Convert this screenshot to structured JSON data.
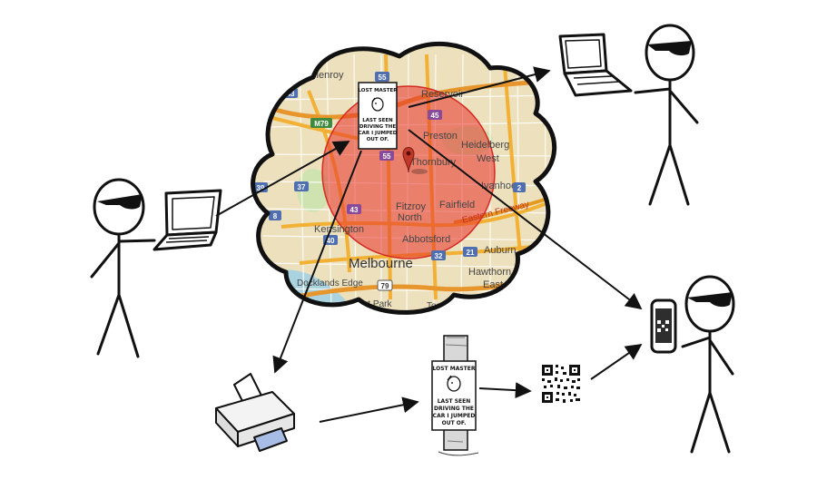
{
  "map": {
    "places": [
      "Glenroy",
      "Reservoir",
      "Preston",
      "Heidelberg",
      "West",
      "Thornbury",
      "Ivanhoe",
      "Fitzroy",
      "North",
      "Fairfield",
      "Kensington",
      "Abbotsford",
      "Auburn",
      "Melbourne",
      "Hawthorn",
      "East",
      "Docklands Edge",
      "Albert Park",
      "Toorak"
    ],
    "road_shields": [
      "55",
      "43",
      "M79",
      "45",
      "55",
      "39",
      "37",
      "8",
      "2",
      "43",
      "40",
      "32",
      "21",
      "79"
    ],
    "freeway_label": "Eastern Freeway",
    "colors": {
      "circle": "#e8312a",
      "water": "#aad3df",
      "land": "#ede0bc",
      "road": "#f2b134",
      "marker": "#c0392b"
    }
  },
  "poster": {
    "title": "LOST MASTER",
    "lines": [
      "LAST SEEN",
      "DRIVING THE",
      "CAR I JUMPED",
      "OUT OF."
    ]
  },
  "icons": {
    "map_marker": "map-pin-icon",
    "printer": "printer-icon",
    "qr_code": "qr-code-icon",
    "phone": "smartphone-icon",
    "laptop": "laptop-icon",
    "pole": "telephone-pole-icon"
  }
}
